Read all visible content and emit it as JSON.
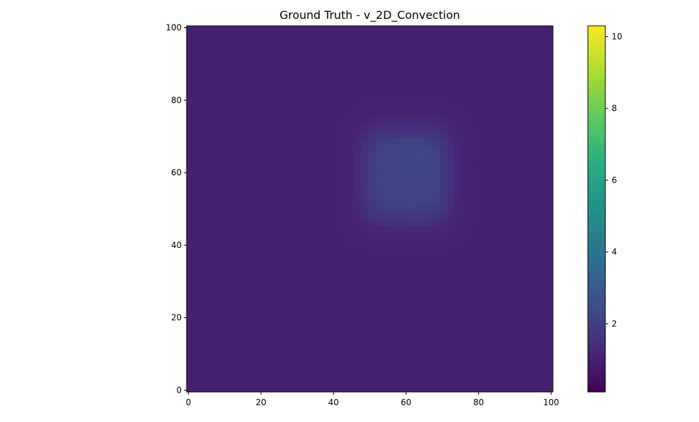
{
  "chart_data": {
    "type": "heatmap",
    "title": "Ground Truth - v_2D_Convection",
    "xlabel": "",
    "ylabel": "",
    "xlim": [
      -0.5,
      100.5
    ],
    "ylim": [
      -0.5,
      100.5
    ],
    "x_ticks": [
      0,
      20,
      40,
      60,
      80,
      100
    ],
    "y_ticks": [
      0,
      20,
      40,
      60,
      80,
      100
    ],
    "colormap": "viridis",
    "colorbar": {
      "vmin": 0.1,
      "vmax": 10.3,
      "ticks": [
        2,
        4,
        6,
        8,
        10
      ],
      "placement": "right"
    },
    "field": {
      "grid_size": 101,
      "background": 1.0,
      "blob": {
        "center": [
          60,
          59
        ],
        "half_width": [
          11,
          12
        ],
        "peak": 2.25,
        "soft_halo": 0.3,
        "description_values": "values range ~1.0 background to ~2.25 inside rounded square"
      }
    },
    "colors": {
      "background_cell": "#481c6e",
      "blob_cell": "#3b4f8a"
    }
  }
}
